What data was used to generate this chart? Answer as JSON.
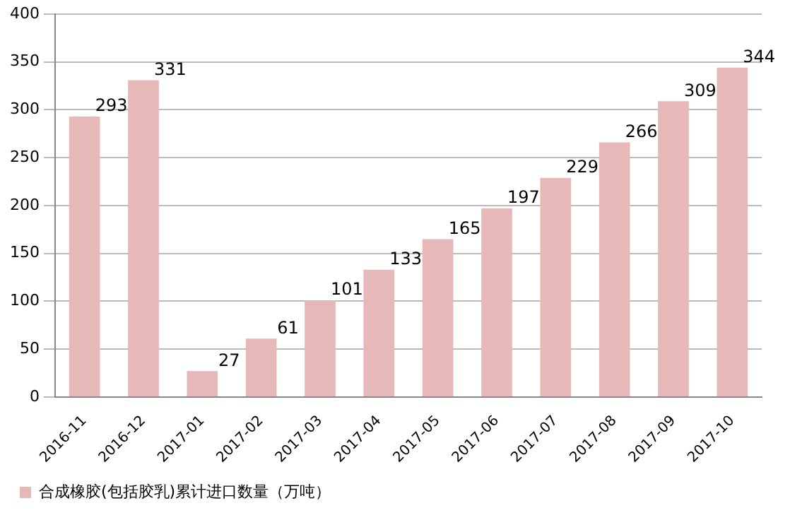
{
  "chart_data": {
    "type": "bar",
    "categories": [
      "2016-11",
      "2016-12",
      "2017-01",
      "2017-02",
      "2017-03",
      "2017-04",
      "2017-05",
      "2017-06",
      "2017-07",
      "2017-08",
      "2017-09",
      "2017-10"
    ],
    "series": [
      {
        "name": "合成橡胶(包括胶乳)累计进口数量（万吨）",
        "color": "#e6b9b8",
        "values": [
          293,
          331,
          27,
          61,
          101,
          133,
          165,
          197,
          229,
          266,
          309,
          344
        ]
      }
    ],
    "ylim": [
      0,
      400
    ],
    "yticks": [
      0,
      50,
      100,
      150,
      200,
      250,
      300,
      350,
      400
    ],
    "grid": "y",
    "legend": "bottom",
    "data_labels": true
  }
}
